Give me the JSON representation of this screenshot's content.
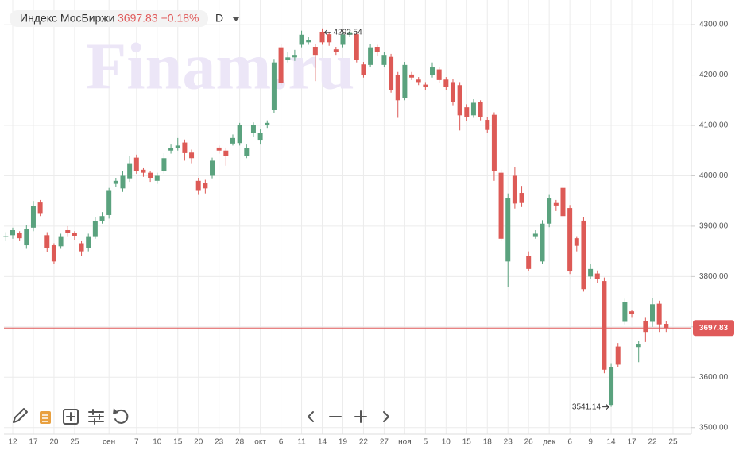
{
  "chart_data": {
    "type": "candlestick",
    "title": "Индекс МосБиржи",
    "change": "−0.18%",
    "interval": "D",
    "watermark": "Finam.ru",
    "up_color": "#5aa27e",
    "down_color": "#dd5a56",
    "price_line_color": "#e05a5a",
    "grid": true,
    "ylim": [
      3487,
      4349
    ],
    "yticks": [
      {
        "value": 3500,
        "label": "3500.00"
      },
      {
        "value": 3600,
        "label": "3600.00"
      },
      {
        "value": 3700,
        "label": "3700.00"
      },
      {
        "value": 3800,
        "label": "3800.00"
      },
      {
        "value": 3900,
        "label": "3900.00"
      },
      {
        "value": 4000,
        "label": "4000.00"
      },
      {
        "value": 4100,
        "label": "4100.00"
      },
      {
        "value": 4200,
        "label": "4200.00"
      },
      {
        "value": 4300,
        "label": "4300.00"
      }
    ],
    "xlim": [
      -0.27,
      99.66
    ],
    "xticks": [
      {
        "value": 1,
        "label": "12"
      },
      {
        "value": 4,
        "label": "17"
      },
      {
        "value": 7,
        "label": "20"
      },
      {
        "value": 10,
        "label": "25"
      },
      {
        "value": 15,
        "label": "сен"
      },
      {
        "value": 19,
        "label": "7"
      },
      {
        "value": 22,
        "label": "10"
      },
      {
        "value": 25,
        "label": "15"
      },
      {
        "value": 28,
        "label": "20"
      },
      {
        "value": 31,
        "label": "23"
      },
      {
        "value": 34,
        "label": "28"
      },
      {
        "value": 37,
        "label": "окт"
      },
      {
        "value": 40,
        "label": "6"
      },
      {
        "value": 43,
        "label": "11"
      },
      {
        "value": 46,
        "label": "14"
      },
      {
        "value": 49,
        "label": "19"
      },
      {
        "value": 52,
        "label": "22"
      },
      {
        "value": 55,
        "label": "27"
      },
      {
        "value": 58,
        "label": "ноя"
      },
      {
        "value": 61,
        "label": "5"
      },
      {
        "value": 64,
        "label": "10"
      },
      {
        "value": 67,
        "label": "15"
      },
      {
        "value": 70,
        "label": "18"
      },
      {
        "value": 73,
        "label": "23"
      },
      {
        "value": 76,
        "label": "26"
      },
      {
        "value": 79,
        "label": "дек"
      },
      {
        "value": 82,
        "label": "6"
      },
      {
        "value": 85,
        "label": "9"
      },
      {
        "value": 88,
        "label": "14"
      },
      {
        "value": 91,
        "label": "17"
      },
      {
        "value": 94,
        "label": "22"
      },
      {
        "value": 97,
        "label": "25"
      }
    ],
    "open": [
      3878,
      3882,
      3886,
      3862,
      3897,
      3947,
      3882,
      3862,
      3860,
      3892,
      3886,
      3866,
      3856,
      3880,
      3910,
      3922,
      3984,
      3975,
      3995,
      4036,
      4012,
      4006,
      3990,
      4010,
      4050,
      4055,
      4066,
      4046,
      3990,
      3986,
      4000,
      4056,
      4050,
      4064,
      4065,
      4040,
      4085,
      4070,
      4100,
      4130,
      4255,
      4230,
      4235,
      4260,
      4265,
      4256,
      4286,
      4281,
      4251,
      4260,
      4280,
      4281,
      4221,
      4220,
      4256,
      4220,
      4236,
      4200,
      4155,
      4201,
      4191,
      4181,
      4200,
      4211,
      4191,
      4186,
      4180,
      4136,
      4120,
      4146,
      4111,
      4121,
      4006,
      3830,
      4000,
      3966,
      3841,
      3880,
      3830,
      3905,
      3946,
      3976,
      3936,
      3876,
      3911,
      3800,
      3806,
      3791,
      3545,
      3661,
      3710,
      3731,
      3660,
      3711,
      3710,
      3746,
      3706
    ],
    "high": [
      3888,
      3897,
      3890,
      3902,
      3950,
      3952,
      3888,
      3866,
      3885,
      3900,
      3890,
      3870,
      3885,
      3918,
      3928,
      3976,
      3996,
      4010,
      4040,
      4042,
      4015,
      4010,
      4006,
      4045,
      4062,
      4075,
      4072,
      4052,
      3996,
      3992,
      4036,
      4060,
      4056,
      4082,
      4105,
      4062,
      4106,
      4092,
      4110,
      4232,
      4262,
      4245,
      4250,
      4288,
      4276,
      4262,
      4292.54,
      4286,
      4256,
      4285,
      4290,
      4286,
      4226,
      4262,
      4260,
      4246,
      4242,
      4206,
      4226,
      4206,
      4196,
      4186,
      4225,
      4216,
      4196,
      4192,
      4186,
      4142,
      4152,
      4150,
      4116,
      4126,
      4012,
      3965,
      4018,
      3980,
      3850,
      3892,
      3912,
      3962,
      3952,
      3982,
      3942,
      3880,
      3918,
      3825,
      3812,
      3798,
      3628,
      3668,
      3756,
      3734,
      3672,
      3718,
      3758,
      3752,
      3712
    ],
    "low": [
      3870,
      3875,
      3870,
      3855,
      3890,
      3920,
      3848,
      3825,
      3855,
      3880,
      3872,
      3840,
      3850,
      3875,
      3905,
      3915,
      3978,
      3968,
      3988,
      4004,
      3998,
      3988,
      3984,
      4004,
      4044,
      4050,
      4030,
      4025,
      3962,
      3965,
      3995,
      4044,
      4020,
      4060,
      4060,
      4035,
      4078,
      4062,
      4095,
      4125,
      4180,
      4225,
      4228,
      4255,
      4260,
      4188,
      4260,
      4258,
      4240,
      4255,
      4275,
      4225,
      4195,
      4215,
      4238,
      4215,
      4165,
      4115,
      4150,
      4190,
      4180,
      4170,
      4195,
      4185,
      4170,
      4140,
      4090,
      4108,
      4115,
      4110,
      4085,
      3990,
      3870,
      3780,
      3935,
      3938,
      3810,
      3875,
      3825,
      3898,
      3930,
      3915,
      3805,
      3850,
      3770,
      3795,
      3788,
      3608,
      3541.14,
      3620,
      3705,
      3718,
      3630,
      3670,
      3700,
      3690,
      3690
    ],
    "close": [
      3880,
      3892,
      3876,
      3895,
      3940,
      3926,
      3856,
      3830,
      3880,
      3886,
      3881,
      3850,
      3880,
      3910,
      3920,
      3970,
      3990,
      4000,
      4025,
      4010,
      4006,
      3996,
      4000,
      4035,
      4055,
      4060,
      4045,
      4035,
      3970,
      3975,
      4030,
      4050,
      4040,
      4075,
      4100,
      4055,
      4100,
      4085,
      4105,
      4225,
      4185,
      4235,
      4240,
      4280,
      4270,
      4240,
      4265,
      4265,
      4246,
      4280,
      4285,
      4230,
      4200,
      4255,
      4245,
      4240,
      4170,
      4150,
      4220,
      4195,
      4186,
      4176,
      4215,
      4190,
      4176,
      4146,
      4120,
      4116,
      4145,
      4116,
      4091,
      4010,
      3875,
      3955,
      3945,
      3946,
      3815,
      3885,
      3905,
      3955,
      3941,
      3920,
      3810,
      3861,
      3775,
      3815,
      3795,
      3615,
      3620,
      3625,
      3750,
      3726,
      3665,
      3690,
      3745,
      3705,
      3697.83
    ]
  }
}
